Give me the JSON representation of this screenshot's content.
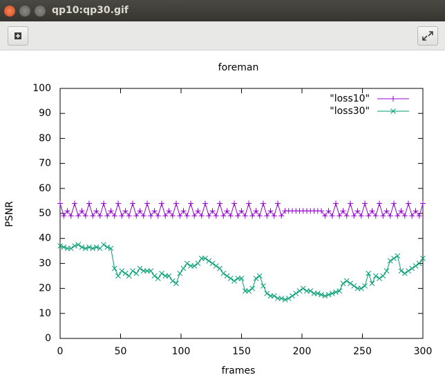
{
  "window": {
    "title": "qp10:qp30.gif"
  },
  "chart_data": {
    "type": "line",
    "title": "foreman",
    "x_label": "frames",
    "y_label": "PSNR",
    "xlim": [
      0,
      300
    ],
    "ylim": [
      0,
      100
    ],
    "xticks": [
      0,
      50,
      100,
      150,
      200,
      250,
      300
    ],
    "yticks": [
      0,
      10,
      20,
      30,
      40,
      50,
      60,
      70,
      80,
      90,
      100
    ],
    "legend": "top-right",
    "x": [
      0,
      3,
      6,
      9,
      12,
      15,
      18,
      21,
      24,
      27,
      30,
      33,
      36,
      39,
      42,
      45,
      48,
      51,
      54,
      57,
      60,
      63,
      66,
      69,
      72,
      75,
      78,
      81,
      84,
      87,
      90,
      93,
      96,
      99,
      102,
      105,
      108,
      111,
      114,
      117,
      120,
      123,
      126,
      129,
      132,
      135,
      138,
      141,
      144,
      147,
      150,
      153,
      156,
      159,
      162,
      165,
      168,
      171,
      174,
      177,
      180,
      183,
      186,
      189,
      192,
      195,
      198,
      201,
      204,
      207,
      210,
      213,
      216,
      219,
      222,
      225,
      228,
      231,
      234,
      237,
      240,
      243,
      246,
      249,
      252,
      255,
      258,
      261,
      264,
      267,
      270,
      273,
      276,
      279,
      282,
      285,
      288,
      291,
      294,
      297,
      300
    ],
    "series": [
      {
        "name": "\"loss10\"",
        "color": "#9400d3",
        "marker": "plus",
        "values": [
          54,
          49,
          51,
          49,
          54,
          49,
          51,
          49,
          54,
          49,
          51,
          49,
          54,
          49,
          51,
          49,
          54,
          49,
          51,
          49,
          54,
          49,
          51,
          49,
          54,
          49,
          51,
          49,
          54,
          49,
          51,
          49,
          54,
          49,
          51,
          49,
          54,
          49,
          51,
          49,
          54,
          49,
          51,
          49,
          54,
          49,
          51,
          49,
          54,
          49,
          51,
          49,
          54,
          49,
          51,
          49,
          54,
          49,
          51,
          49,
          54,
          49,
          51,
          51,
          51,
          51,
          51,
          51,
          51,
          51,
          51,
          51,
          51,
          49,
          51,
          49,
          54,
          49,
          51,
          49,
          54,
          49,
          51,
          49,
          54,
          49,
          51,
          49,
          54,
          49,
          51,
          49,
          54,
          49,
          51,
          49,
          54,
          49,
          51,
          49,
          54
        ]
      },
      {
        "name": "\"loss30\"",
        "color": "#009e73",
        "marker": "cross",
        "values": [
          37,
          36.5,
          36,
          36,
          37,
          37.5,
          36.5,
          36,
          36.5,
          36,
          36.5,
          36,
          37.5,
          36.5,
          36,
          28,
          25,
          27,
          26,
          25,
          27,
          26,
          28,
          27,
          27,
          27,
          25,
          24,
          26,
          25,
          25,
          23,
          22,
          26,
          28,
          30,
          29,
          29,
          30,
          32,
          32,
          31,
          30,
          29,
          28,
          26,
          25,
          24,
          23,
          24,
          24,
          19,
          19,
          20,
          24,
          25,
          21,
          18,
          17,
          17,
          16,
          16,
          15.5,
          16,
          17,
          18,
          19,
          20,
          19,
          19,
          18,
          18,
          17.5,
          17,
          17.5,
          18,
          18.5,
          19,
          22,
          23,
          22,
          21,
          20,
          20,
          21,
          26,
          22,
          25,
          24,
          25,
          27,
          31,
          32,
          33,
          27,
          26,
          27,
          28,
          29,
          30,
          32
        ]
      }
    ]
  }
}
